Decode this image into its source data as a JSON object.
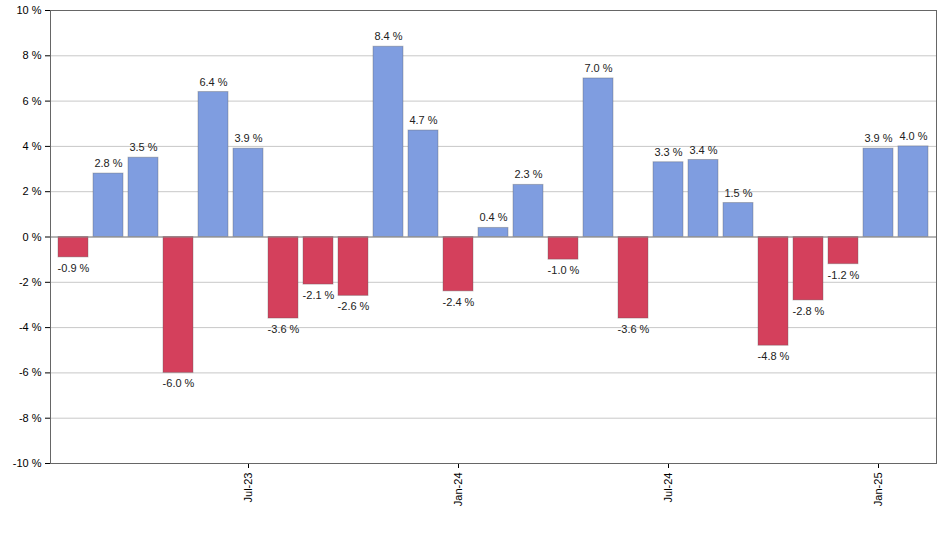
{
  "chart_data": {
    "type": "bar",
    "categories": [
      null,
      null,
      null,
      null,
      null,
      "Jul-23",
      null,
      null,
      null,
      null,
      null,
      "Jan-24",
      null,
      null,
      null,
      null,
      null,
      "Jul-24",
      null,
      null,
      null,
      null,
      null,
      "Jan-25",
      null
    ],
    "values": [
      -0.9,
      2.8,
      3.5,
      -6.0,
      6.4,
      3.9,
      -3.6,
      -2.1,
      -2.6,
      8.4,
      4.7,
      -2.4,
      0.4,
      2.3,
      -1.0,
      7.0,
      -3.6,
      3.3,
      3.4,
      1.5,
      -4.8,
      -2.8,
      -1.2,
      3.9,
      4.0
    ],
    "value_labels": [
      "-0.9 %",
      "2.8 %",
      "3.5 %",
      "-6.0 %",
      "6.4 %",
      "3.9 %",
      "-3.6 %",
      "-2.1 %",
      "-2.6 %",
      "8.4 %",
      "4.7 %",
      "-2.4 %",
      "0.4 %",
      "2.3 %",
      "-1.0 %",
      "7.0 %",
      "-3.6 %",
      "3.3 %",
      "3.4 %",
      "1.5 %",
      "-4.8 %",
      "-2.8 %",
      "-1.2 %",
      "3.9 %",
      "4.0 %"
    ],
    "colors": [
      "#d4405c",
      "#7f9de0",
      "#7f9de0",
      "#d4405c",
      "#7f9de0",
      "#7f9de0",
      "#d4405c",
      "#d4405c",
      "#d4405c",
      "#7f9de0",
      "#7f9de0",
      "#d4405c",
      "#7f9de0",
      "#7f9de0",
      "#d4405c",
      "#7f9de0",
      "#d4405c",
      "#7f9de0",
      "#7f9de0",
      "#7f9de0",
      "#d4405c",
      "#d4405c",
      "#d4405c",
      "#7f9de0",
      "#7f9de0"
    ],
    "ylim": [
      -10,
      10
    ],
    "yticks": [
      {
        "value": -10,
        "label": "-10 %"
      },
      {
        "value": -8,
        "label": "-8 %"
      },
      {
        "value": -6,
        "label": "-6 %"
      },
      {
        "value": -4,
        "label": "-4 %"
      },
      {
        "value": -2,
        "label": "-2 %"
      },
      {
        "value": 0,
        "label": "0 %"
      },
      {
        "value": 2,
        "label": "2 %"
      },
      {
        "value": 4,
        "label": "4 %"
      },
      {
        "value": 6,
        "label": "6 %"
      },
      {
        "value": 8,
        "label": "8 %"
      },
      {
        "value": 10,
        "label": "10 %"
      }
    ],
    "grid": true,
    "data_labels": true
  }
}
